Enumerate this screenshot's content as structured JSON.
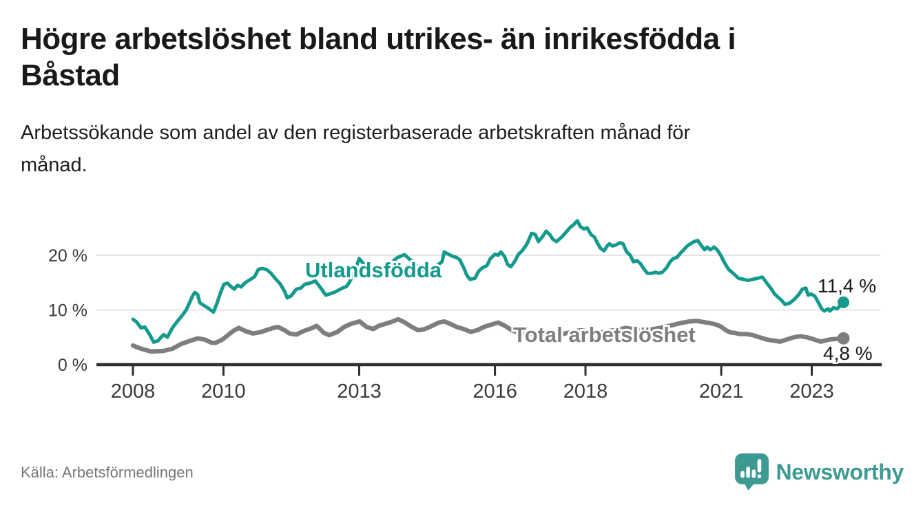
{
  "header": {
    "title_line1": "Högre arbetslöshet bland utrikes- än inrikesfödda i",
    "title_line2": "Båstad",
    "subtitle_line1": "Arbetssökande som andel av den registerbaserade arbetskraften månad för",
    "subtitle_line2": "månad."
  },
  "footer": {
    "source": "Källa: Arbetsförmedlingen",
    "brand": "Newsworthy",
    "brand_color": "#3d9a93",
    "logo_icon": "speech-bubble-bar-chart-exclamation"
  },
  "chart_data": {
    "type": "line",
    "title": "",
    "xlabel": "",
    "ylabel": "",
    "unit": "%",
    "grid": "horizontal-only",
    "legend_position": "inline-labels",
    "x_axis": {
      "ticks": [
        2008,
        2010,
        2013,
        2016,
        2018,
        2021,
        2023
      ],
      "labels": [
        "2008",
        "2010",
        "2013",
        "2016",
        "2018",
        "2021",
        "2023"
      ]
    },
    "y_axis": {
      "ticks": [
        0,
        10,
        20
      ],
      "labels": [
        "0 %",
        "10 %",
        "20 %"
      ],
      "range": [
        0,
        28
      ]
    },
    "colors": {
      "axis_text": "#3a3a3a",
      "axis_line": "#2f2f2f",
      "gridline": "#dcdcdc"
    },
    "series": [
      {
        "name": "Utlandsfödda",
        "color": "#149a8d",
        "end_label": "11,4 %",
        "end_value": 11.4,
        "line_width": 5,
        "points": [
          [
            2008.0,
            8.3
          ],
          [
            2008.08,
            7.8
          ],
          [
            2008.18,
            6.7
          ],
          [
            2008.26,
            6.9
          ],
          [
            2008.37,
            5.5
          ],
          [
            2008.46,
            4.1
          ],
          [
            2008.56,
            4.4
          ],
          [
            2008.62,
            5.0
          ],
          [
            2008.68,
            5.5
          ],
          [
            2008.76,
            5.0
          ],
          [
            2008.87,
            6.7
          ],
          [
            2008.97,
            7.8
          ],
          [
            2009.07,
            8.8
          ],
          [
            2009.17,
            9.9
          ],
          [
            2009.25,
            11.3
          ],
          [
            2009.32,
            12.6
          ],
          [
            2009.37,
            13.2
          ],
          [
            2009.43,
            12.8
          ],
          [
            2009.48,
            11.3
          ],
          [
            2009.55,
            10.9
          ],
          [
            2009.67,
            10.3
          ],
          [
            2009.78,
            9.6
          ],
          [
            2009.86,
            11.3
          ],
          [
            2009.93,
            13.0
          ],
          [
            2010.01,
            14.7
          ],
          [
            2010.09,
            14.9
          ],
          [
            2010.16,
            14.3
          ],
          [
            2010.24,
            13.8
          ],
          [
            2010.31,
            14.5
          ],
          [
            2010.39,
            14.2
          ],
          [
            2010.47,
            14.9
          ],
          [
            2010.54,
            15.3
          ],
          [
            2010.62,
            15.7
          ],
          [
            2010.69,
            16.1
          ],
          [
            2010.77,
            17.4
          ],
          [
            2010.85,
            17.6
          ],
          [
            2010.95,
            17.4
          ],
          [
            2011.04,
            16.8
          ],
          [
            2011.15,
            15.7
          ],
          [
            2011.26,
            14.7
          ],
          [
            2011.35,
            13.4
          ],
          [
            2011.41,
            12.2
          ],
          [
            2011.5,
            12.6
          ],
          [
            2011.61,
            13.8
          ],
          [
            2011.71,
            14.0
          ],
          [
            2011.8,
            14.7
          ],
          [
            2011.91,
            14.9
          ],
          [
            2012.03,
            15.3
          ],
          [
            2012.17,
            13.8
          ],
          [
            2012.26,
            12.7
          ],
          [
            2012.34,
            12.9
          ],
          [
            2012.47,
            13.3
          ],
          [
            2012.63,
            14.0
          ],
          [
            2012.72,
            14.3
          ],
          [
            2012.78,
            15.0
          ],
          [
            2012.88,
            16.6
          ],
          [
            2013.0,
            19.4
          ],
          [
            2013.12,
            18.2
          ],
          [
            2013.3,
            17.2
          ],
          [
            2013.5,
            17.6
          ],
          [
            2013.7,
            18.6
          ],
          [
            2013.85,
            19.6
          ],
          [
            2014.0,
            20.1
          ],
          [
            2014.15,
            19.0
          ],
          [
            2014.3,
            17.8
          ],
          [
            2014.45,
            17.1
          ],
          [
            2014.6,
            17.6
          ],
          [
            2014.75,
            18.3
          ],
          [
            2014.83,
            18.8
          ],
          [
            2014.88,
            20.6
          ],
          [
            2014.97,
            20.2
          ],
          [
            2015.07,
            19.8
          ],
          [
            2015.15,
            19.6
          ],
          [
            2015.22,
            19.2
          ],
          [
            2015.31,
            17.7
          ],
          [
            2015.38,
            16.3
          ],
          [
            2015.45,
            15.6
          ],
          [
            2015.56,
            15.8
          ],
          [
            2015.64,
            17.1
          ],
          [
            2015.72,
            17.7
          ],
          [
            2015.82,
            18.1
          ],
          [
            2015.9,
            19.4
          ],
          [
            2016.0,
            20.2
          ],
          [
            2016.07,
            20.0
          ],
          [
            2016.13,
            20.6
          ],
          [
            2016.21,
            19.8
          ],
          [
            2016.28,
            18.3
          ],
          [
            2016.35,
            17.9
          ],
          [
            2016.43,
            18.8
          ],
          [
            2016.52,
            20.2
          ],
          [
            2016.6,
            20.8
          ],
          [
            2016.71,
            22.1
          ],
          [
            2016.81,
            24.0
          ],
          [
            2016.89,
            23.8
          ],
          [
            2016.96,
            22.5
          ],
          [
            2017.06,
            23.5
          ],
          [
            2017.13,
            24.4
          ],
          [
            2017.21,
            23.8
          ],
          [
            2017.28,
            22.9
          ],
          [
            2017.36,
            22.5
          ],
          [
            2017.47,
            23.3
          ],
          [
            2017.57,
            24.2
          ],
          [
            2017.65,
            25.0
          ],
          [
            2017.74,
            25.6
          ],
          [
            2017.82,
            26.3
          ],
          [
            2017.89,
            25.2
          ],
          [
            2017.97,
            24.8
          ],
          [
            2018.04,
            25.0
          ],
          [
            2018.12,
            23.8
          ],
          [
            2018.2,
            23.3
          ],
          [
            2018.26,
            22.3
          ],
          [
            2018.33,
            21.3
          ],
          [
            2018.41,
            20.8
          ],
          [
            2018.48,
            21.7
          ],
          [
            2018.53,
            22.1
          ],
          [
            2018.6,
            21.7
          ],
          [
            2018.68,
            21.9
          ],
          [
            2018.76,
            22.3
          ],
          [
            2018.83,
            22.1
          ],
          [
            2018.91,
            20.6
          ],
          [
            2018.99,
            20.0
          ],
          [
            2019.06,
            18.8
          ],
          [
            2019.14,
            19.0
          ],
          [
            2019.21,
            18.5
          ],
          [
            2019.29,
            17.5
          ],
          [
            2019.37,
            16.7
          ],
          [
            2019.47,
            16.7
          ],
          [
            2019.55,
            16.9
          ],
          [
            2019.62,
            16.7
          ],
          [
            2019.7,
            16.9
          ],
          [
            2019.79,
            17.7
          ],
          [
            2019.87,
            18.8
          ],
          [
            2019.94,
            19.4
          ],
          [
            2020.02,
            19.6
          ],
          [
            2020.1,
            20.4
          ],
          [
            2020.17,
            21.0
          ],
          [
            2020.25,
            21.7
          ],
          [
            2020.32,
            22.1
          ],
          [
            2020.4,
            22.5
          ],
          [
            2020.48,
            22.7
          ],
          [
            2020.55,
            21.9
          ],
          [
            2020.63,
            21.0
          ],
          [
            2020.69,
            21.5
          ],
          [
            2020.76,
            21.0
          ],
          [
            2020.84,
            21.5
          ],
          [
            2020.91,
            21.0
          ],
          [
            2020.99,
            20.0
          ],
          [
            2021.06,
            18.8
          ],
          [
            2021.14,
            17.7
          ],
          [
            2021.18,
            17.3
          ],
          [
            2021.29,
            16.5
          ],
          [
            2021.38,
            15.8
          ],
          [
            2021.49,
            15.6
          ],
          [
            2021.59,
            15.4
          ],
          [
            2021.7,
            15.6
          ],
          [
            2021.8,
            15.8
          ],
          [
            2021.91,
            16.0
          ],
          [
            2022.0,
            15.0
          ],
          [
            2022.11,
            13.8
          ],
          [
            2022.18,
            12.9
          ],
          [
            2022.26,
            12.3
          ],
          [
            2022.34,
            11.7
          ],
          [
            2022.41,
            11.0
          ],
          [
            2022.52,
            11.3
          ],
          [
            2022.61,
            11.9
          ],
          [
            2022.72,
            12.9
          ],
          [
            2022.79,
            13.8
          ],
          [
            2022.87,
            14.0
          ],
          [
            2022.92,
            12.7
          ],
          [
            2022.99,
            12.9
          ],
          [
            2023.07,
            12.5
          ],
          [
            2023.15,
            11.3
          ],
          [
            2023.22,
            10.2
          ],
          [
            2023.28,
            9.8
          ],
          [
            2023.36,
            10.2
          ],
          [
            2023.4,
            9.8
          ],
          [
            2023.48,
            10.4
          ],
          [
            2023.56,
            10.2
          ],
          [
            2023.7,
            11.4
          ]
        ]
      },
      {
        "name": "Total arbetslöshet",
        "color": "#7e7e7e",
        "end_label": "4,8 %",
        "end_value": 4.8,
        "line_width": 6.5,
        "points": [
          [
            2008.0,
            3.5
          ],
          [
            2008.18,
            2.9
          ],
          [
            2008.4,
            2.4
          ],
          [
            2008.67,
            2.5
          ],
          [
            2008.87,
            2.9
          ],
          [
            2009.07,
            3.8
          ],
          [
            2009.28,
            4.4
          ],
          [
            2009.43,
            4.8
          ],
          [
            2009.58,
            4.6
          ],
          [
            2009.74,
            4.0
          ],
          [
            2009.83,
            4.0
          ],
          [
            2009.98,
            4.6
          ],
          [
            2010.13,
            5.6
          ],
          [
            2010.24,
            6.3
          ],
          [
            2010.34,
            6.7
          ],
          [
            2010.5,
            6.1
          ],
          [
            2010.65,
            5.7
          ],
          [
            2010.8,
            5.9
          ],
          [
            2010.95,
            6.3
          ],
          [
            2011.1,
            6.7
          ],
          [
            2011.2,
            6.9
          ],
          [
            2011.35,
            6.3
          ],
          [
            2011.46,
            5.7
          ],
          [
            2011.61,
            5.5
          ],
          [
            2011.76,
            6.1
          ],
          [
            2011.96,
            6.7
          ],
          [
            2012.06,
            7.1
          ],
          [
            2012.22,
            5.8
          ],
          [
            2012.34,
            5.4
          ],
          [
            2012.52,
            6.0
          ],
          [
            2012.67,
            6.9
          ],
          [
            2012.83,
            7.5
          ],
          [
            2013.01,
            7.9
          ],
          [
            2013.16,
            6.9
          ],
          [
            2013.31,
            6.5
          ],
          [
            2013.43,
            7.1
          ],
          [
            2013.59,
            7.5
          ],
          [
            2013.74,
            7.9
          ],
          [
            2013.86,
            8.3
          ],
          [
            2014.01,
            7.7
          ],
          [
            2014.16,
            6.9
          ],
          [
            2014.3,
            6.3
          ],
          [
            2014.45,
            6.5
          ],
          [
            2014.61,
            7.1
          ],
          [
            2014.76,
            7.7
          ],
          [
            2014.88,
            7.9
          ],
          [
            2015.0,
            7.5
          ],
          [
            2015.15,
            6.9
          ],
          [
            2015.31,
            6.5
          ],
          [
            2015.46,
            6.0
          ],
          [
            2015.61,
            6.3
          ],
          [
            2015.76,
            6.9
          ],
          [
            2015.91,
            7.3
          ],
          [
            2016.07,
            7.7
          ],
          [
            2016.22,
            7.1
          ],
          [
            2016.37,
            6.3
          ],
          [
            2016.52,
            5.8
          ],
          [
            2016.7,
            5.5
          ],
          [
            2016.9,
            5.8
          ],
          [
            2017.1,
            5.5
          ],
          [
            2017.3,
            5.3
          ],
          [
            2017.5,
            5.6
          ],
          [
            2017.7,
            6.0
          ],
          [
            2017.9,
            6.3
          ],
          [
            2018.1,
            6.0
          ],
          [
            2018.3,
            5.8
          ],
          [
            2018.5,
            6.1
          ],
          [
            2018.7,
            6.4
          ],
          [
            2018.9,
            6.7
          ],
          [
            2019.1,
            6.4
          ],
          [
            2019.3,
            6.2
          ],
          [
            2019.5,
            6.5
          ],
          [
            2019.7,
            6.8
          ],
          [
            2019.9,
            7.2
          ],
          [
            2020.1,
            7.6
          ],
          [
            2020.3,
            7.9
          ],
          [
            2020.45,
            8.0
          ],
          [
            2020.6,
            7.8
          ],
          [
            2020.75,
            7.6
          ],
          [
            2020.9,
            7.3
          ],
          [
            2021.0,
            6.9
          ],
          [
            2021.1,
            6.3
          ],
          [
            2021.2,
            5.9
          ],
          [
            2021.3,
            5.8
          ],
          [
            2021.4,
            5.6
          ],
          [
            2021.55,
            5.6
          ],
          [
            2021.7,
            5.4
          ],
          [
            2021.85,
            5.0
          ],
          [
            2022.0,
            4.6
          ],
          [
            2022.15,
            4.4
          ],
          [
            2022.3,
            4.2
          ],
          [
            2022.45,
            4.6
          ],
          [
            2022.6,
            5.0
          ],
          [
            2022.75,
            5.2
          ],
          [
            2022.9,
            5.0
          ],
          [
            2023.05,
            4.6
          ],
          [
            2023.2,
            4.2
          ],
          [
            2023.3,
            4.4
          ],
          [
            2023.4,
            4.6
          ],
          [
            2023.7,
            4.8
          ]
        ]
      }
    ]
  }
}
